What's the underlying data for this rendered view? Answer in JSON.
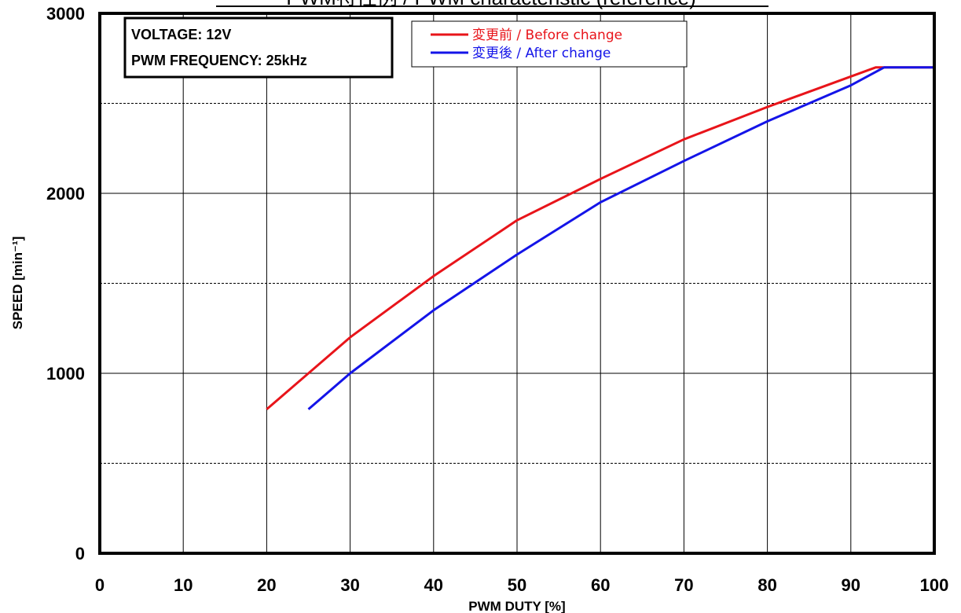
{
  "chart_data": {
    "type": "line",
    "title": "PWM特性例 / PWM characteristic (reference)",
    "xlabel": "PWM DUTY [%]",
    "ylabel": "SPEED [min⁻¹]",
    "xlim": [
      0,
      100
    ],
    "ylim": [
      0,
      3000
    ],
    "x_ticks": [
      "0",
      "10",
      "20",
      "30",
      "40",
      "50",
      "60",
      "70",
      "80",
      "90",
      "100"
    ],
    "y_ticks": [
      "0",
      "1000",
      "2000",
      "3000"
    ],
    "grid": true,
    "legend_position": "top-center",
    "info_box": {
      "line1": "VOLTAGE: 12V",
      "line2": "PWM FREQUENCY: 25kHz"
    },
    "series": [
      {
        "name": "変更前 / Before change",
        "color": "#e8141a",
        "x": [
          20,
          30,
          40,
          50,
          60,
          70,
          80,
          93,
          100
        ],
        "y": [
          800,
          1200,
          1540,
          1850,
          2080,
          2300,
          2480,
          2700,
          2700
        ]
      },
      {
        "name": "変更後 / After change",
        "color": "#1414e8",
        "x": [
          25,
          30,
          40,
          50,
          60,
          70,
          80,
          90,
          94,
          100
        ],
        "y": [
          800,
          1000,
          1350,
          1660,
          1950,
          2180,
          2400,
          2600,
          2700,
          2700
        ]
      }
    ]
  }
}
